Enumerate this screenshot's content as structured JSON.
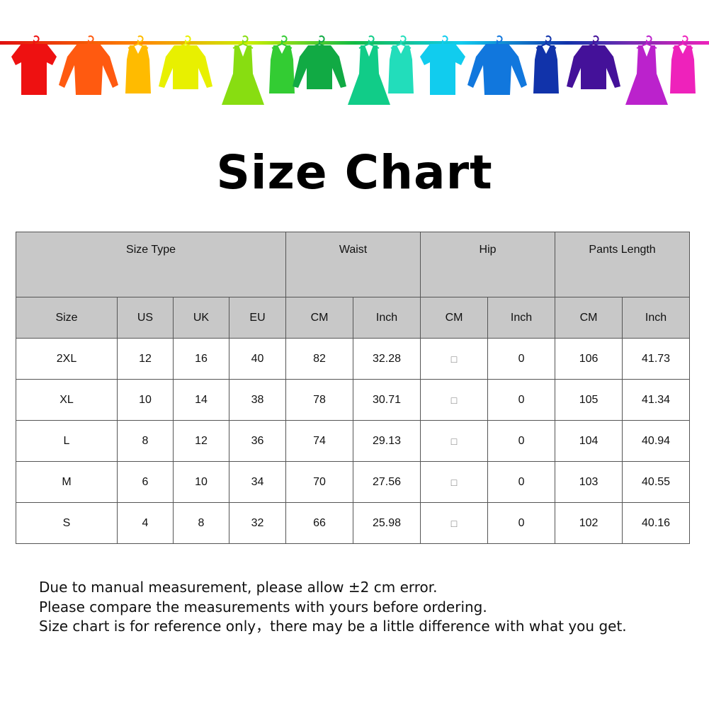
{
  "banner": {
    "colors": [
      "#ee1111",
      "#ff5a10",
      "#ffbb00",
      "#e8f000",
      "#88dd11",
      "#33cc33",
      "#11aa44",
      "#11cc88",
      "#22ddbb",
      "#11ccee",
      "#1177dd",
      "#1133aa",
      "#441199",
      "#bb22cc",
      "#ee22bb"
    ]
  },
  "title": "Size Chart",
  "table": {
    "group_headers": [
      "Size Type",
      "Waist",
      "Hip",
      "Pants Length"
    ],
    "sub_headers": [
      "Size",
      "US",
      "UK",
      "EU",
      "CM",
      "Inch",
      "CM",
      "Inch",
      "CM",
      "Inch"
    ],
    "rows": [
      [
        "2XL",
        "12",
        "16",
        "40",
        "82",
        "32.28",
        "□",
        "0",
        "106",
        "41.73"
      ],
      [
        "XL",
        "10",
        "14",
        "38",
        "78",
        "30.71",
        "□",
        "0",
        "105",
        "41.34"
      ],
      [
        "L",
        "8",
        "12",
        "36",
        "74",
        "29.13",
        "□",
        "0",
        "104",
        "40.94"
      ],
      [
        "M",
        "6",
        "10",
        "34",
        "70",
        "27.56",
        "□",
        "0",
        "103",
        "40.55"
      ],
      [
        "S",
        "4",
        "8",
        "32",
        "66",
        "25.98",
        "□",
        "0",
        "102",
        "40.16"
      ]
    ]
  },
  "notes": [
    "Due to manual measurement, please allow ±2 cm error.",
    "Please compare the measurements with yours before ordering.",
    "Size chart is for reference only，there may be a little difference with what you get."
  ]
}
